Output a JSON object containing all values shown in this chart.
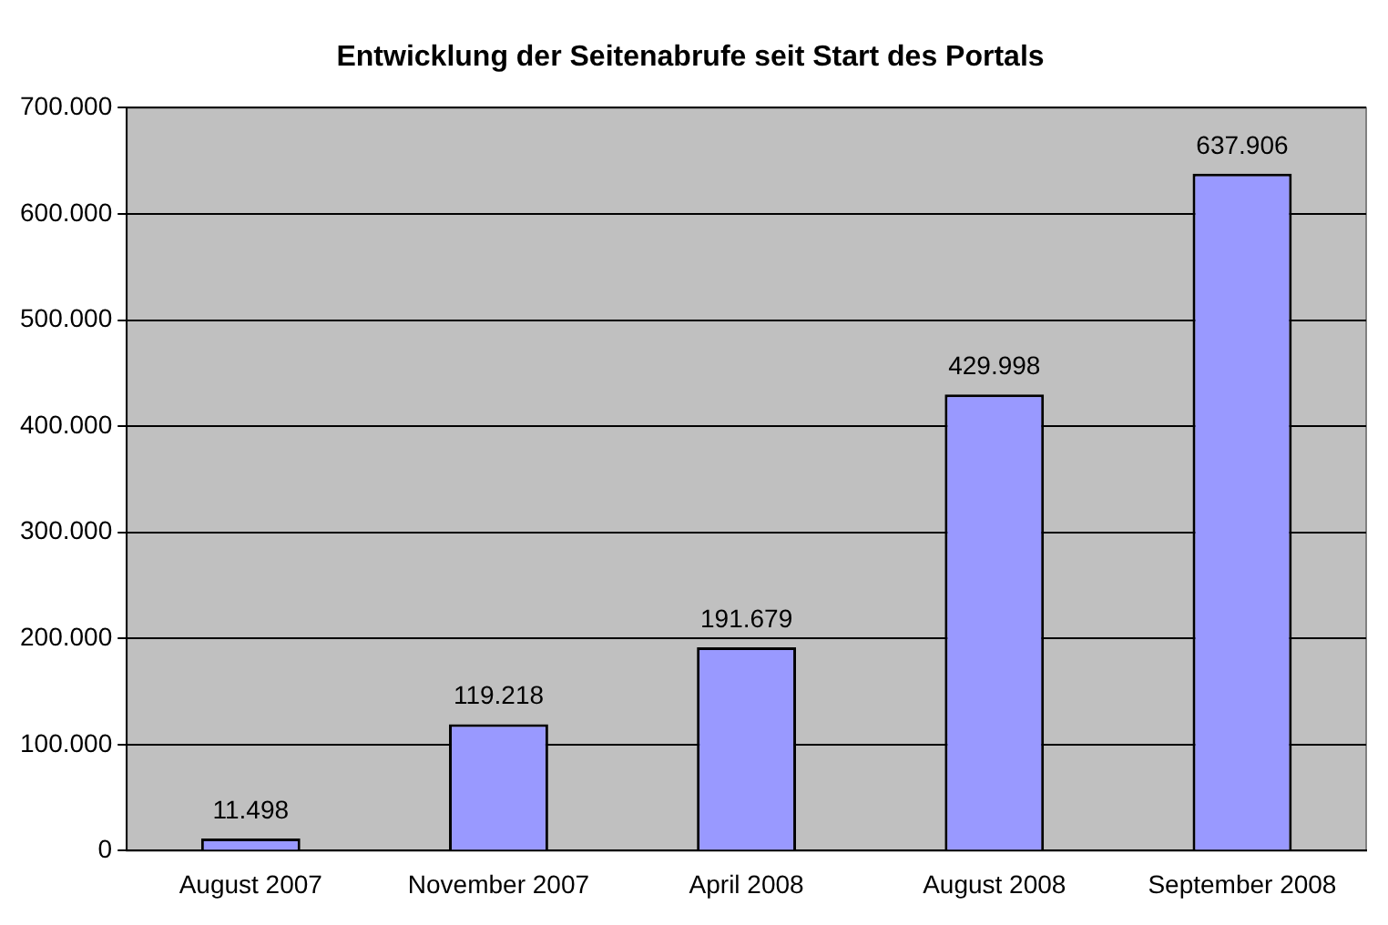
{
  "chart_data": {
    "type": "bar",
    "title": "Entwicklung der Seitenabrufe seit Start des Portals",
    "categories": [
      "August 2007",
      "November 2007",
      "April 2008",
      "August 2008",
      "September 2008"
    ],
    "values": [
      11498,
      119218,
      191679,
      429998,
      637906
    ],
    "value_labels": [
      "11.498",
      "119.218",
      "191.679",
      "429.998",
      "637.906"
    ],
    "color": "#9999ff",
    "ylim": [
      0,
      700000
    ],
    "yticks": [
      {
        "value": 0,
        "label": "0"
      },
      {
        "value": 100000,
        "label": "100.000"
      },
      {
        "value": 200000,
        "label": "200.000"
      },
      {
        "value": 300000,
        "label": "300.000"
      },
      {
        "value": 400000,
        "label": "400.000"
      },
      {
        "value": 500000,
        "label": "500.000"
      },
      {
        "value": 600000,
        "label": "600.000"
      },
      {
        "value": 700000,
        "label": "700.000"
      }
    ],
    "grid": "y",
    "legend": false
  }
}
